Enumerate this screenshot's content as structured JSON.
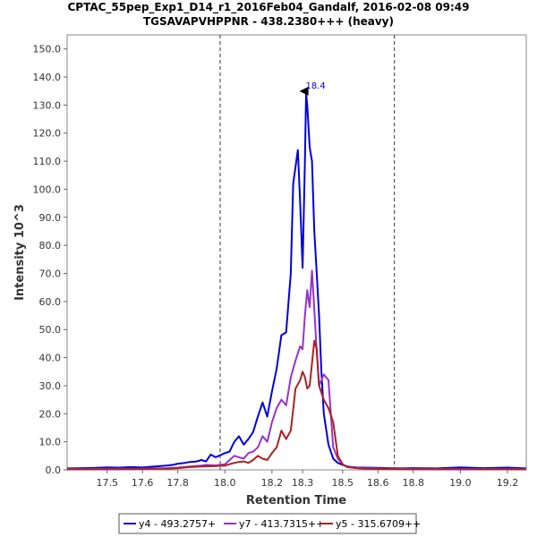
{
  "chart_data": {
    "type": "line",
    "title": "CPTAC_55pep_Exp1_D14_r1_2016Feb04_Gandalf, 2016-02-08 09:49",
    "subtitle": "TGSAVAPVHPPNR - 438.2380+++ (heavy)",
    "xlabel": "Retention Time",
    "ylabel": "Intensity 10^3",
    "xlim": [
      17.33,
      19.28
    ],
    "ylim": [
      0,
      155
    ],
    "x_ticks": [
      "17.5",
      "17.6",
      "17.8",
      "18.0",
      "18.2",
      "18.3",
      "18.5",
      "18.6",
      "18.8",
      "19.0",
      "19.2"
    ],
    "x_tick_values": [
      17.5,
      17.65,
      17.8,
      18.0,
      18.2,
      18.33,
      18.5,
      18.65,
      18.8,
      19.0,
      19.2
    ],
    "y_ticks": [
      "0.0",
      "10.0",
      "20.0",
      "30.0",
      "40.0",
      "50.0",
      "60.0",
      "70.0",
      "80.0",
      "90.0",
      "100.0",
      "110.0",
      "120.0",
      "130.0",
      "140.0",
      "150.0"
    ],
    "y_tick_values": [
      0,
      10,
      20,
      30,
      40,
      50,
      60,
      70,
      80,
      90,
      100,
      110,
      120,
      130,
      140,
      150
    ],
    "integration_bounds": [
      17.98,
      18.72
    ],
    "peak_label": "18.4",
    "peak_x": 18.37,
    "peak_y": 134,
    "legend_position": "bottom",
    "series": [
      {
        "name": "y4 - 493.2757+",
        "color": "#0000dd",
        "x": [
          17.33,
          17.4,
          17.45,
          17.5,
          17.55,
          17.6,
          17.65,
          17.7,
          17.75,
          17.78,
          17.8,
          17.83,
          17.85,
          17.88,
          17.9,
          17.92,
          17.94,
          17.96,
          17.98,
          18.0,
          18.02,
          18.04,
          18.06,
          18.08,
          18.1,
          18.12,
          18.14,
          18.16,
          18.18,
          18.2,
          18.22,
          18.24,
          18.26,
          18.28,
          18.29,
          18.3,
          18.31,
          18.32,
          18.33,
          18.34,
          18.345,
          18.35,
          18.36,
          18.37,
          18.38,
          18.39,
          18.4,
          18.41,
          18.42,
          18.44,
          18.46,
          18.48,
          18.5,
          18.52,
          18.54,
          18.56,
          18.6,
          18.65,
          18.7,
          18.75,
          18.8,
          18.9,
          19.0,
          19.1,
          19.2,
          19.28
        ],
        "y": [
          0.5,
          0.6,
          0.7,
          0.9,
          0.8,
          1.0,
          0.9,
          1.2,
          1.5,
          1.8,
          2.2,
          2.5,
          2.8,
          3.0,
          3.5,
          3.0,
          5.5,
          4.5,
          5.2,
          6.0,
          6.5,
          10.0,
          12.0,
          9.0,
          11.0,
          13.5,
          19.0,
          24.0,
          19.0,
          28.0,
          36.0,
          48.0,
          49.0,
          70.0,
          102.0,
          108.0,
          114.0,
          95.0,
          72.0,
          110.0,
          134.0,
          130.0,
          115.0,
          110.0,
          85.0,
          70.0,
          55.0,
          35.0,
          20.0,
          9.0,
          4.0,
          2.5,
          1.8,
          1.2,
          1.0,
          0.9,
          0.8,
          0.7,
          0.6,
          0.5,
          0.6,
          0.5,
          0.9,
          0.6,
          0.8,
          0.5
        ]
      },
      {
        "name": "y7 - 413.7315++",
        "color": "#9933cc",
        "x": [
          17.33,
          17.4,
          17.5,
          17.6,
          17.7,
          17.75,
          17.8,
          17.85,
          17.9,
          17.92,
          17.96,
          18.0,
          18.02,
          18.04,
          18.06,
          18.08,
          18.1,
          18.12,
          18.14,
          18.16,
          18.18,
          18.2,
          18.22,
          18.24,
          18.26,
          18.28,
          18.3,
          18.32,
          18.33,
          18.34,
          18.35,
          18.36,
          18.37,
          18.38,
          18.39,
          18.4,
          18.42,
          18.44,
          18.46,
          18.48,
          18.5,
          18.52,
          18.56,
          18.6,
          18.7,
          18.8,
          18.9,
          19.0,
          19.1,
          19.2,
          19.28
        ],
        "y": [
          0.3,
          0.3,
          0.4,
          0.4,
          0.5,
          0.6,
          0.8,
          1.2,
          1.5,
          1.8,
          1.6,
          2.0,
          3.5,
          5.0,
          4.5,
          4.0,
          6.0,
          6.5,
          8.0,
          12.0,
          10.0,
          17.0,
          22.0,
          25.0,
          23.0,
          33.0,
          39.0,
          44.0,
          43.0,
          55.0,
          64.0,
          58.0,
          71.0,
          57.0,
          42.0,
          30.0,
          34.0,
          32.0,
          8.0,
          4.0,
          2.0,
          1.0,
          0.8,
          0.6,
          0.4,
          0.3,
          0.3,
          0.3,
          0.3,
          0.3,
          0.3
        ]
      },
      {
        "name": "y5 - 315.6709++",
        "color": "#aa2222",
        "x": [
          17.33,
          17.4,
          17.5,
          17.6,
          17.7,
          17.75,
          17.8,
          17.85,
          17.9,
          17.95,
          18.0,
          18.02,
          18.04,
          18.06,
          18.08,
          18.1,
          18.12,
          18.14,
          18.16,
          18.18,
          18.2,
          18.22,
          18.24,
          18.26,
          18.28,
          18.3,
          18.32,
          18.33,
          18.34,
          18.35,
          18.36,
          18.37,
          18.38,
          18.39,
          18.4,
          18.42,
          18.44,
          18.46,
          18.48,
          18.5,
          18.52,
          18.56,
          18.6,
          18.7,
          18.8,
          18.9,
          19.0,
          19.1,
          19.2,
          19.28
        ],
        "y": [
          0.2,
          0.2,
          0.2,
          0.3,
          0.4,
          0.4,
          0.6,
          1.0,
          1.2,
          1.3,
          1.5,
          2.0,
          2.5,
          2.8,
          3.0,
          2.5,
          3.5,
          5.0,
          4.0,
          3.5,
          6.0,
          8.0,
          14.0,
          11.0,
          14.0,
          29.0,
          32.0,
          35.0,
          33.0,
          29.0,
          30.0,
          38.0,
          46.0,
          43.0,
          30.0,
          25.0,
          22.0,
          17.0,
          5.0,
          2.0,
          1.0,
          0.6,
          0.4,
          0.3,
          0.2,
          0.2,
          0.2,
          0.2,
          0.2,
          0.2
        ]
      }
    ]
  }
}
